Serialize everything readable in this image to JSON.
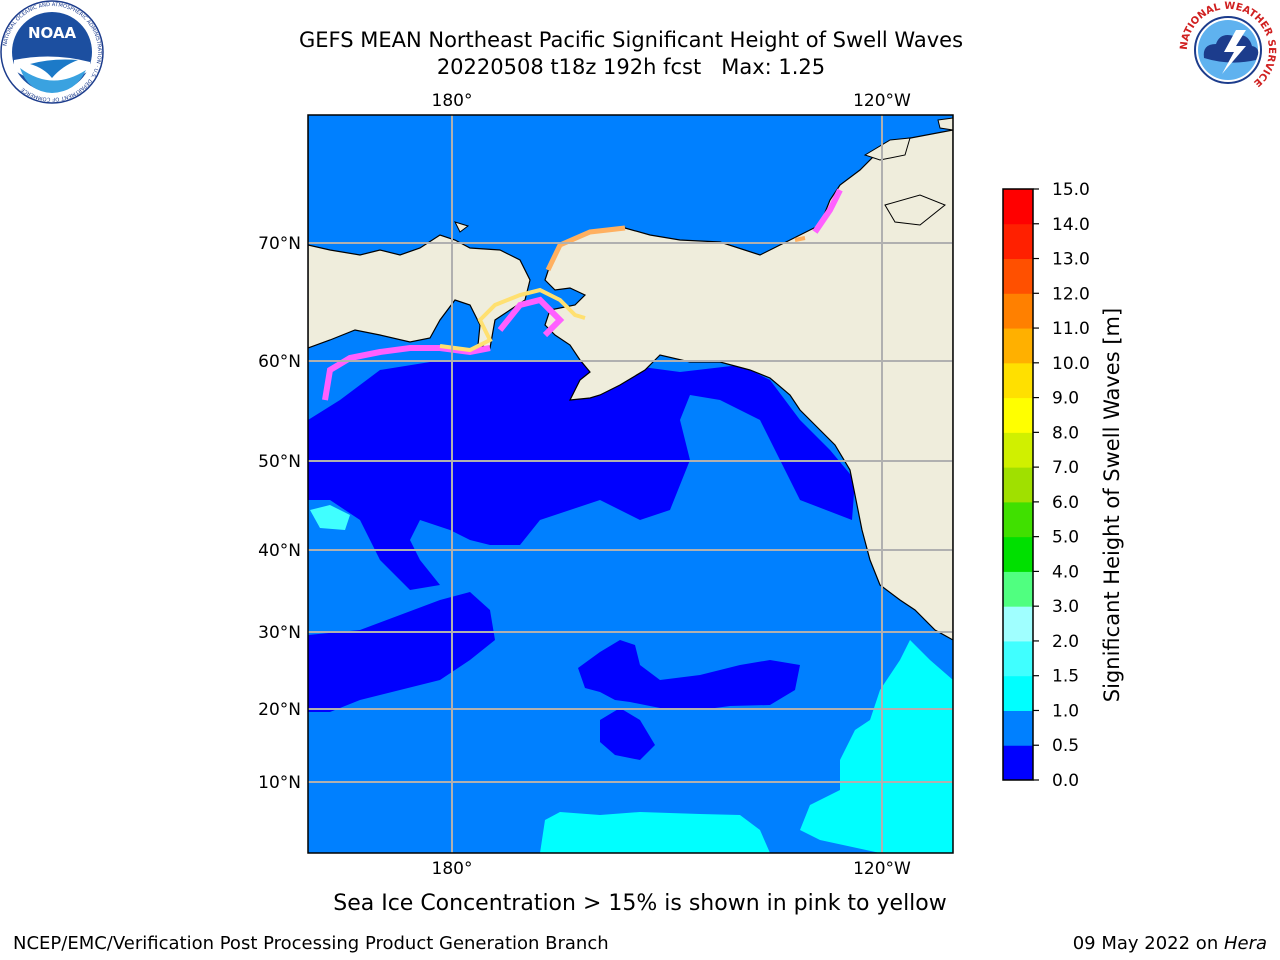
{
  "header": {
    "title_line1": "GEFS MEAN Northeast Pacific Significant Height of Swell Waves",
    "title_line2": "20220508 t18z 192h fcst   Max: 1.25"
  },
  "logos": {
    "left": {
      "icon": "noaa-logo",
      "text": "NOAA",
      "ring_text": "NATIONAL OCEANIC AND ATMOSPHERIC ADMINISTRATION · U.S. DEPARTMENT OF COMMERCE"
    },
    "right": {
      "icon": "nws-logo",
      "ring_text": "NATIONAL WEATHER SERVICE"
    }
  },
  "map": {
    "lon_labels_top": [
      "180°",
      "120°W"
    ],
    "lon_labels_bottom": [
      "180°",
      "120°W"
    ],
    "lat_labels": [
      "70°N",
      "60°N",
      "50°N",
      "40°N",
      "30°N",
      "20°N",
      "10°N"
    ],
    "colors": {
      "land": "#efeddc",
      "deep_blue": "#0000ff",
      "mid_blue": "#0080ff",
      "cyan": "#00ffff",
      "ice_pink": "#ff60ff",
      "ice_orange": "#ffb060",
      "ice_yellow": "#ffff70",
      "grid": "#b0b0b0"
    }
  },
  "colorbar": {
    "label": "Significant Height of Swell Waves [m]",
    "ticks": [
      "0.0",
      "0.5",
      "1.0",
      "1.5",
      "2.0",
      "3.0",
      "4.0",
      "5.0",
      "6.0",
      "7.0",
      "8.0",
      "9.0",
      "10.0",
      "11.0",
      "12.0",
      "13.0",
      "14.0",
      "15.0"
    ],
    "colors": [
      "#0000ff",
      "#0080ff",
      "#00ffff",
      "#40ffff",
      "#a0ffff",
      "#50ff80",
      "#00e000",
      "#40e000",
      "#a0e000",
      "#d0f000",
      "#ffff00",
      "#ffe000",
      "#ffb000",
      "#ff8000",
      "#ff5000",
      "#ff2000",
      "#ff0000"
    ]
  },
  "caption": "Sea Ice Concentration > 15% is shown in pink to yellow",
  "footer": {
    "left": "NCEP/EMC/Verification Post Processing Product Generation Branch",
    "right_prefix": "09 May 2022 on ",
    "right_host": "Hera"
  }
}
